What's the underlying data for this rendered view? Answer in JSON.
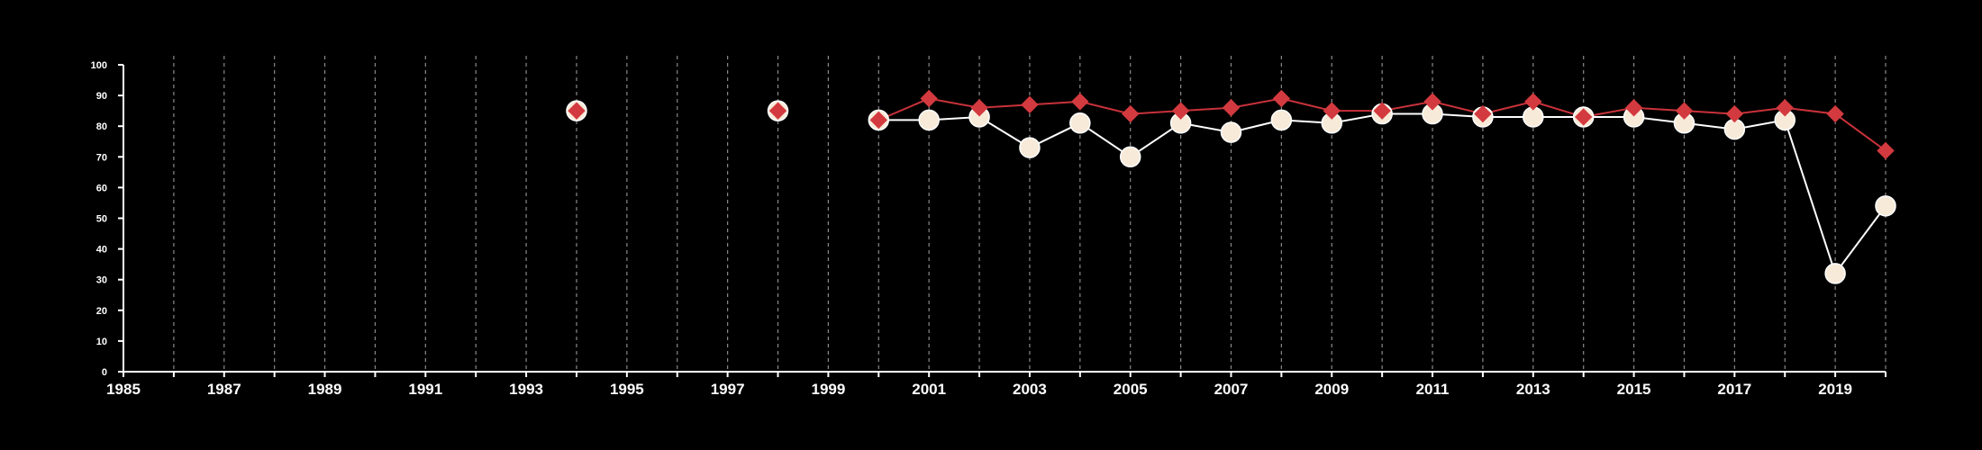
{
  "chart_data": {
    "type": "line",
    "title": "",
    "xlabel": "",
    "ylabel": "",
    "xlim": [
      1985,
      2020
    ],
    "ylim": [
      0,
      100
    ],
    "grid": {
      "vertical": true,
      "horizontal": false,
      "style": "dashed"
    },
    "x_ticks": [
      1985,
      1987,
      1989,
      1991,
      1993,
      1995,
      1997,
      1999,
      2001,
      2003,
      2005,
      2007,
      2009,
      2011,
      2013,
      2015,
      2017,
      2019
    ],
    "x_tick_labels": [
      "1985",
      "1987",
      "1989",
      "1991",
      "1993",
      "1995",
      "1997",
      "1999",
      "2001",
      "2003",
      "2005",
      "2007",
      "2009",
      "2011",
      "2013",
      "2015",
      "2017",
      "2019"
    ],
    "y_ticks": [
      0,
      10,
      20,
      30,
      40,
      50,
      60,
      70,
      80,
      90,
      100
    ],
    "y_tick_labels": [
      "0",
      "10",
      "20",
      "30",
      "40",
      "50",
      "60",
      "70",
      "80",
      "90",
      "100"
    ],
    "series": [
      {
        "marker": "circle",
        "color": "#ffffff",
        "marker_fill": "#f8ead8",
        "points": [
          {
            "x": 1994,
            "y": 85
          },
          {
            "x": 1998,
            "y": 85
          },
          {
            "x": 2000,
            "y": 82
          },
          {
            "x": 2001,
            "y": 82
          },
          {
            "x": 2002,
            "y": 83
          },
          {
            "x": 2003,
            "y": 73
          },
          {
            "x": 2004,
            "y": 81
          },
          {
            "x": 2005,
            "y": 70
          },
          {
            "x": 2006,
            "y": 81
          },
          {
            "x": 2007,
            "y": 78
          },
          {
            "x": 2008,
            "y": 82
          },
          {
            "x": 2009,
            "y": 81
          },
          {
            "x": 2010,
            "y": 84
          },
          {
            "x": 2011,
            "y": 84
          },
          {
            "x": 2012,
            "y": 83
          },
          {
            "x": 2013,
            "y": 83
          },
          {
            "x": 2014,
            "y": 83
          },
          {
            "x": 2015,
            "y": 83
          },
          {
            "x": 2016,
            "y": 81
          },
          {
            "x": 2017,
            "y": 79
          },
          {
            "x": 2018,
            "y": 82
          },
          {
            "x": 2019,
            "y": 32
          },
          {
            "x": 2020,
            "y": 54
          }
        ]
      },
      {
        "marker": "diamond",
        "color": "#c8323a",
        "marker_fill": "#d33a3f",
        "points": [
          {
            "x": 1994,
            "y": 85
          },
          {
            "x": 1998,
            "y": 85
          },
          {
            "x": 2000,
            "y": 82
          },
          {
            "x": 2001,
            "y": 89
          },
          {
            "x": 2002,
            "y": 86
          },
          {
            "x": 2003,
            "y": 87
          },
          {
            "x": 2004,
            "y": 88
          },
          {
            "x": 2005,
            "y": 84
          },
          {
            "x": 2006,
            "y": 85
          },
          {
            "x": 2007,
            "y": 86
          },
          {
            "x": 2008,
            "y": 89
          },
          {
            "x": 2009,
            "y": 85
          },
          {
            "x": 2010,
            "y": 85
          },
          {
            "x": 2011,
            "y": 88
          },
          {
            "x": 2012,
            "y": 84
          },
          {
            "x": 2013,
            "y": 88
          },
          {
            "x": 2014,
            "y": 83
          },
          {
            "x": 2015,
            "y": 86
          },
          {
            "x": 2016,
            "y": 85
          },
          {
            "x": 2017,
            "y": 84
          },
          {
            "x": 2018,
            "y": 86
          },
          {
            "x": 2019,
            "y": 84
          },
          {
            "x": 2020,
            "y": 72
          }
        ]
      }
    ]
  }
}
